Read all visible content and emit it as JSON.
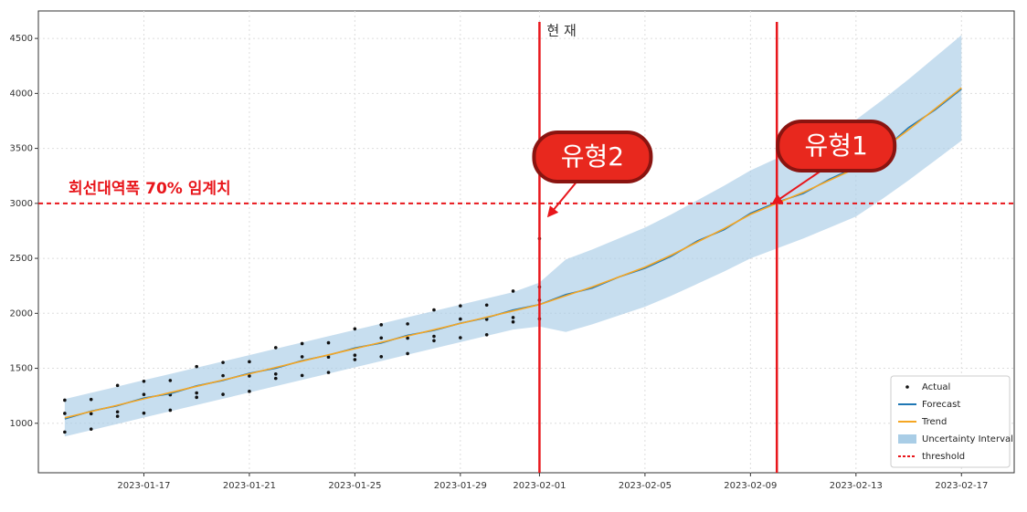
{
  "chart_data": {
    "type": "forecast",
    "xlim": [
      "2023-01-13",
      "2023-02-19"
    ],
    "ylim": [
      550,
      4750
    ],
    "xticks": [
      "2023-01-17",
      "2023-01-21",
      "2023-01-25",
      "2023-01-29",
      "2023-02-01",
      "2023-02-05",
      "2023-02-09",
      "2023-02-13",
      "2023-02-17"
    ],
    "yticks": [
      1000,
      1500,
      2000,
      2500,
      3000,
      3500,
      4000,
      4500
    ],
    "grid": true,
    "legend": "lower right",
    "x": [
      "2023-01-14",
      "2023-01-15",
      "2023-01-16",
      "2023-01-17",
      "2023-01-18",
      "2023-01-19",
      "2023-01-20",
      "2023-01-21",
      "2023-01-22",
      "2023-01-23",
      "2023-01-24",
      "2023-01-25",
      "2023-01-26",
      "2023-01-27",
      "2023-01-28",
      "2023-01-29",
      "2023-01-30",
      "2023-01-31",
      "2023-02-01",
      "2023-02-02",
      "2023-02-03",
      "2023-02-04",
      "2023-02-05",
      "2023-02-06",
      "2023-02-07",
      "2023-02-08",
      "2023-02-09",
      "2023-02-10",
      "2023-02-11",
      "2023-02-12",
      "2023-02-13",
      "2023-02-14",
      "2023-02-15",
      "2023-02-16",
      "2023-02-17"
    ],
    "series": [
      {
        "name": "Actual",
        "kind": "scatter",
        "color": "#111111",
        "x": [
          "2023-01-14",
          "2023-01-14",
          "2023-01-14",
          "2023-01-15",
          "2023-01-15",
          "2023-01-15",
          "2023-01-16",
          "2023-01-16",
          "2023-01-16",
          "2023-01-17",
          "2023-01-17",
          "2023-01-17",
          "2023-01-18",
          "2023-01-18",
          "2023-01-18",
          "2023-01-19",
          "2023-01-19",
          "2023-01-19",
          "2023-01-20",
          "2023-01-20",
          "2023-01-20",
          "2023-01-21",
          "2023-01-21",
          "2023-01-21",
          "2023-01-22",
          "2023-01-22",
          "2023-01-22",
          "2023-01-23",
          "2023-01-23",
          "2023-01-23",
          "2023-01-24",
          "2023-01-24",
          "2023-01-24",
          "2023-01-25",
          "2023-01-25",
          "2023-01-25",
          "2023-01-26",
          "2023-01-26",
          "2023-01-26",
          "2023-01-27",
          "2023-01-27",
          "2023-01-27",
          "2023-01-28",
          "2023-01-28",
          "2023-01-28",
          "2023-01-29",
          "2023-01-29",
          "2023-01-29",
          "2023-01-30",
          "2023-01-30",
          "2023-01-30",
          "2023-01-31",
          "2023-01-31",
          "2023-01-31",
          "2023-02-01",
          "2023-02-01",
          "2023-02-01",
          "2023-02-01"
        ],
        "values": [
          920,
          1090,
          1210,
          1217,
          947,
          1087,
          1104,
          1344,
          1064,
          1092,
          1262,
          1382,
          1389,
          1119,
          1259,
          1276,
          1516,
          1236,
          1263,
          1433,
          1553,
          1560,
          1290,
          1430,
          1448,
          1688,
          1408,
          1435,
          1605,
          1725,
          1732,
          1462,
          1602,
          1619,
          1859,
          1579,
          1606,
          1776,
          1896,
          1904,
          1634,
          1774,
          1791,
          2031,
          1751,
          1778,
          1948,
          2068,
          2075,
          1805,
          1945,
          1962,
          2202,
          1922,
          1950,
          2120,
          2240,
          2680
        ]
      },
      {
        "name": "Forecast",
        "kind": "line",
        "color": "#1f77b4",
        "values": [
          1040,
          1110,
          1160,
          1230,
          1270,
          1340,
          1390,
          1455,
          1500,
          1570,
          1620,
          1685,
          1730,
          1800,
          1845,
          1910,
          1960,
          2030,
          2080,
          2170,
          2230,
          2330,
          2410,
          2520,
          2660,
          2760,
          2910,
          3010,
          3090,
          3220,
          3330,
          3480,
          3690,
          3850,
          4040
        ]
      },
      {
        "name": "Trend",
        "kind": "line",
        "color": "#f5a623",
        "values": [
          1050,
          1107,
          1164,
          1222,
          1279,
          1336,
          1393,
          1450,
          1508,
          1565,
          1622,
          1679,
          1736,
          1794,
          1851,
          1908,
          1965,
          2022,
          2080,
          2160,
          2240,
          2330,
          2420,
          2530,
          2650,
          2770,
          2900,
          3000,
          3100,
          3210,
          3320,
          3490,
          3670,
          3860,
          4050
        ]
      },
      {
        "name": "Uncertainty Interval",
        "kind": "band",
        "color": "#a9cde6",
        "lower": [
          880,
          937,
          994,
          1052,
          1109,
          1166,
          1223,
          1280,
          1338,
          1395,
          1452,
          1509,
          1566,
          1624,
          1681,
          1738,
          1795,
          1852,
          1880,
          1830,
          1900,
          1980,
          2060,
          2160,
          2270,
          2380,
          2500,
          2590,
          2680,
          2780,
          2880,
          3040,
          3210,
          3390,
          3570
        ],
        "upper": [
          1220,
          1277,
          1334,
          1392,
          1449,
          1506,
          1563,
          1620,
          1678,
          1735,
          1792,
          1849,
          1906,
          1964,
          2021,
          2078,
          2135,
          2192,
          2280,
          2490,
          2580,
          2680,
          2780,
          2900,
          3030,
          3160,
          3300,
          3410,
          3520,
          3640,
          3760,
          3940,
          4130,
          4330,
          4530
        ]
      },
      {
        "name": "threshold",
        "kind": "hline",
        "color": "#e8161b",
        "value": 3000,
        "label": "회선대역폭 70% 임계치"
      }
    ],
    "vlines": [
      {
        "x": "2023-02-01",
        "label": "현 재"
      },
      {
        "x": "2023-02-10"
      }
    ],
    "annotations": [
      {
        "text": "유형2",
        "x": "2023-02-01",
        "y": 2680
      },
      {
        "text": "유형1",
        "x": "2023-02-10",
        "y": 3000
      }
    ]
  }
}
